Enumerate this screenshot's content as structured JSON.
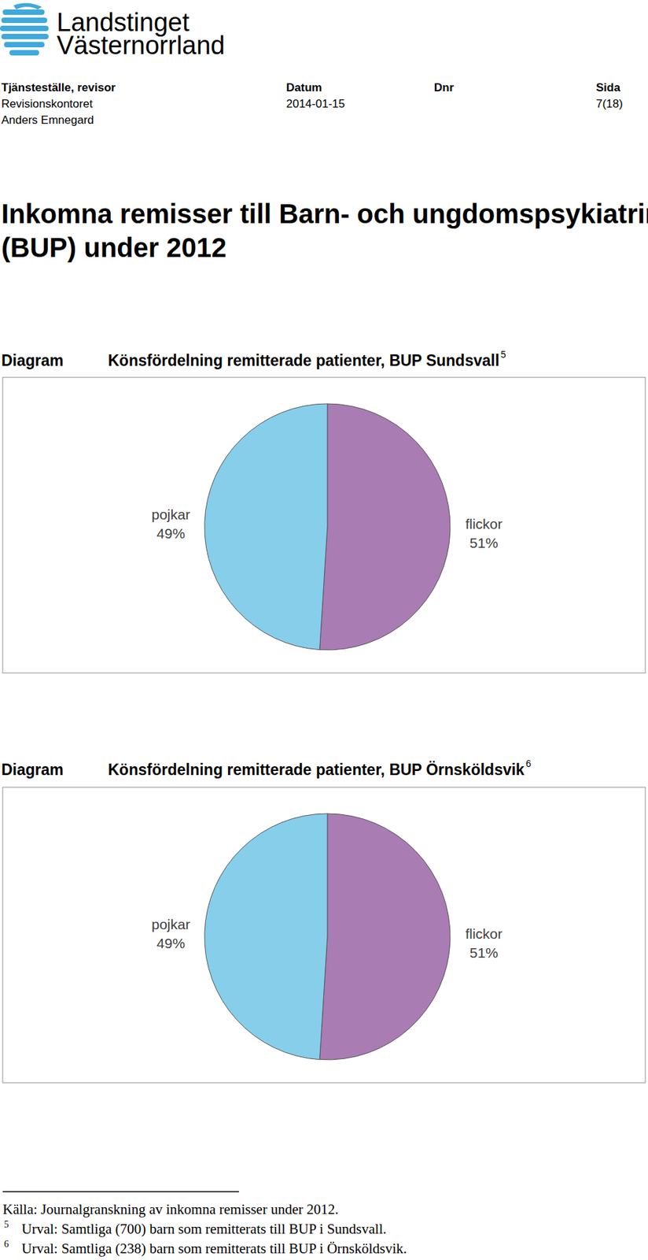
{
  "header": {
    "logo": [
      "Landstinget",
      "Västernorrland"
    ],
    "fields": [
      {
        "label": "Tjänsteställe, revisor",
        "lines": [
          "Revisionskontoret",
          "Anders Emnegard"
        ]
      },
      {
        "label": "Datum",
        "lines": [
          "2014-01-15"
        ]
      },
      {
        "label": "Dnr",
        "lines": []
      },
      {
        "label": "Sida",
        "lines": [
          "7(18)"
        ]
      }
    ]
  },
  "heading": [
    "Inkomna remisser till Barn- och ungdomspsykiatrin",
    "(BUP) under 2012"
  ],
  "captions": [
    {
      "label": "Diagram",
      "ref": "5"
    },
    {
      "label": "Diagram",
      "ref": "6"
    }
  ],
  "chart_data": [
    {
      "type": "pie",
      "title": "Könsfördelning remitterade patienter, BUP Sundsvall",
      "categories": [
        "flickor",
        "pojkar"
      ],
      "values": [
        51,
        49
      ],
      "value_labels": [
        "51%",
        "49%"
      ],
      "colors": [
        "#a97cb3",
        "#87ceeb"
      ],
      "data_labels": true
    },
    {
      "type": "pie",
      "title": "Könsfördelning remitterade patienter, BUP Örnsköldsvik",
      "categories": [
        "flickor",
        "pojkar"
      ],
      "values": [
        51,
        49
      ],
      "value_labels": [
        "51%",
        "49%"
      ],
      "colors": [
        "#a97cb3",
        "#87ceeb"
      ],
      "data_labels": true
    }
  ],
  "footer": {
    "source": "Källa: Journalgranskning av inkomna remisser under 2012.",
    "notes": [
      {
        "ref": "5",
        "text": "Urval: Samtliga (700) barn som remitterats till BUP i Sundsvall."
      },
      {
        "ref": "6",
        "text": "Urval: Samtliga (238) barn som remitterats till BUP i Örnsköldsvik."
      }
    ]
  }
}
